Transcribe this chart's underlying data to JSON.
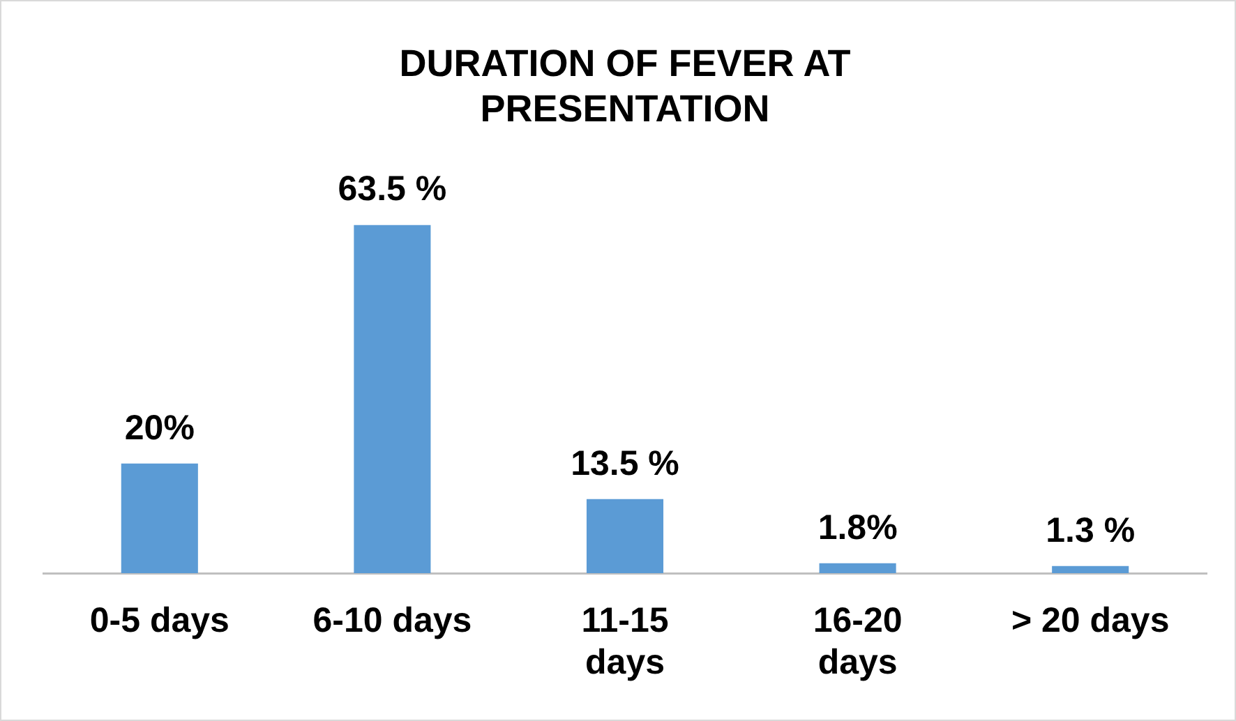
{
  "chart_data": {
    "type": "bar",
    "title": "DURATION OF FEVER AT PRESENTATION",
    "categories": [
      "0-5 days",
      "6-10 days",
      "11-15 days",
      "16-20 days",
      "> 20 days"
    ],
    "values": [
      20,
      63.5,
      13.5,
      1.8,
      1.3
    ],
    "value_labels": [
      "20%",
      "63.5 %",
      "13.5 %",
      "1.8%",
      "1.3 %"
    ],
    "color": "#5b9bd5",
    "grid": false,
    "legend": false,
    "tick_labels": "x"
  }
}
